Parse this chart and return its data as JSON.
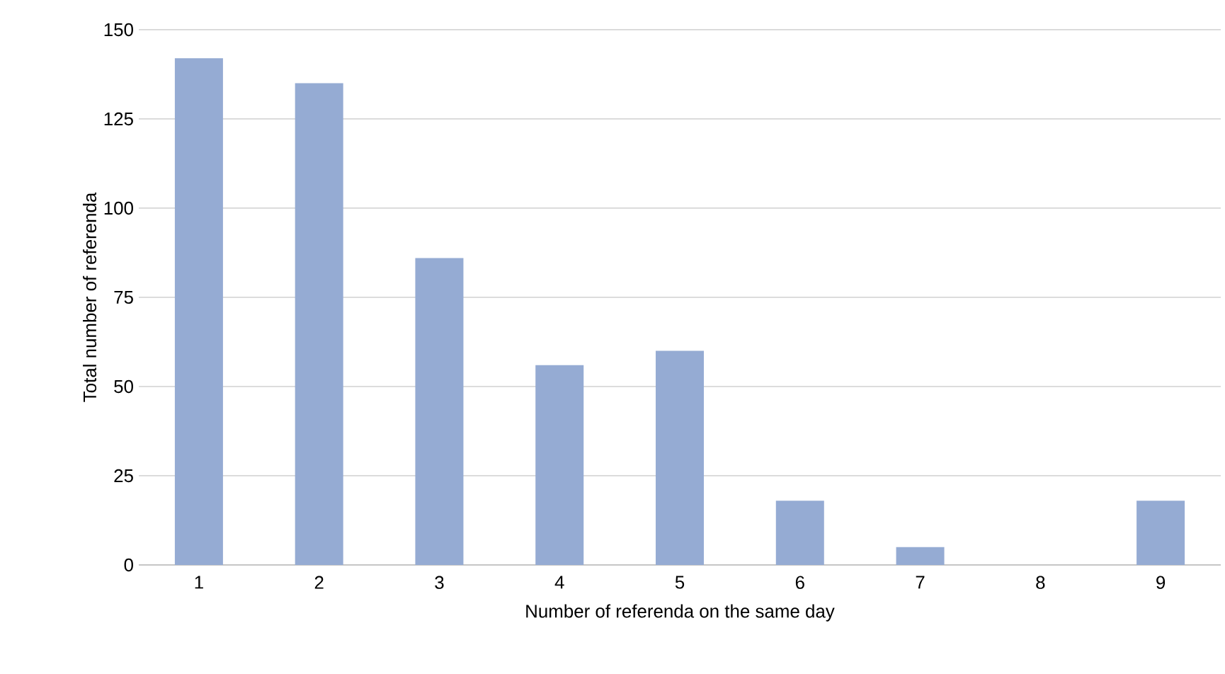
{
  "chart_data": {
    "type": "bar",
    "xlabel": "Number of referenda  on the same day",
    "ylabel": "Total number of referenda",
    "categories": [
      "1",
      "2",
      "3",
      "4",
      "5",
      "6",
      "7",
      "8",
      "9"
    ],
    "values": [
      142,
      135,
      86,
      56,
      60,
      18,
      5,
      0,
      18
    ],
    "color": "#95abd3",
    "ylim": [
      0,
      150
    ],
    "yticks": [
      0,
      25,
      50,
      75,
      100,
      125,
      150
    ],
    "grid": "y"
  }
}
